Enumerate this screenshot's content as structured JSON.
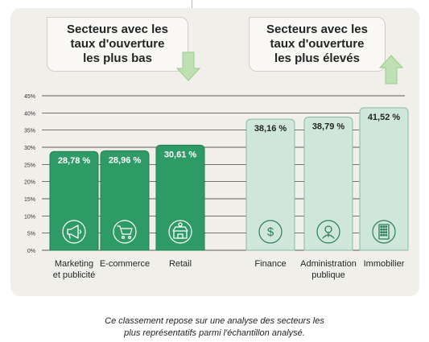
{
  "callouts": {
    "low": [
      "Secteurs avec les",
      "taux d'ouverture",
      "les plus bas"
    ],
    "high": [
      "Secteurs avec les",
      "taux d'ouverture",
      "les plus élevés"
    ]
  },
  "caption": [
    "Ce classement repose sur une analyse des secteurs les",
    "plus représentatifs parmi l'échantillon analysé."
  ],
  "colors": {
    "low_bar": "#2e9a66",
    "low_bar_border": "#247d52",
    "high_bar": "#cfe6da",
    "high_bar_border": "#86bca0",
    "background": "#f1efe9",
    "arrow": "#bfe0b3"
  },
  "chart_data": {
    "type": "bar",
    "ylim": [
      0,
      45
    ],
    "yticks": [
      "0%",
      "5%",
      "10%",
      "15%",
      "20%",
      "25%",
      "30%",
      "35%",
      "40%",
      "45%"
    ],
    "grid": true,
    "categories": [
      [
        "Marketing",
        "et publicité"
      ],
      [
        "E-commerce"
      ],
      [
        "Retail"
      ],
      [
        "Finance"
      ],
      [
        "Administration",
        "publique"
      ],
      [
        "Immobilier"
      ]
    ],
    "values": [
      28.78,
      28.96,
      30.61,
      38.16,
      38.79,
      41.52
    ],
    "value_labels": [
      "28,78 %",
      "28,96 %",
      "30,61 %",
      "38,16 %",
      "38,79 %",
      "41,52 %"
    ],
    "groups": [
      "low",
      "low",
      "low",
      "high",
      "high",
      "high"
    ],
    "icons": [
      "megaphone-icon",
      "shopping-cart-icon",
      "shop-icon",
      "dollar-icon",
      "official-icon",
      "building-icon"
    ]
  }
}
